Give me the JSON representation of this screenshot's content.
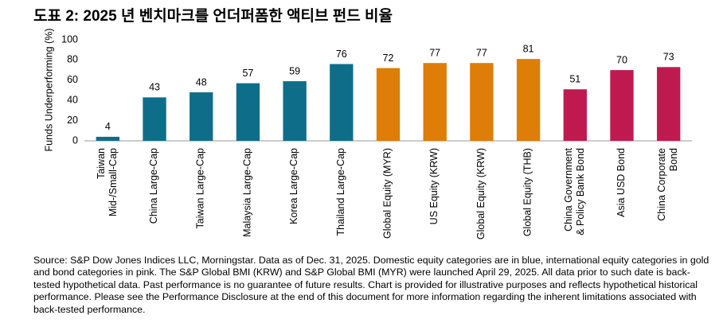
{
  "chart_data": {
    "type": "bar",
    "title": "도표 2: 2025 년 벤치마크를 언더퍼폼한 액티브 펀드 비율",
    "y_label": "Funds Underperforming (%)",
    "categories": [
      "Taiwan\nMid-/Small-Cap",
      "China Large-Cap",
      "Taiwan Large-Cap",
      "Malaysia Large-Cap",
      "Korea Large-Cap",
      "Thailand Large-Cap",
      "Global Equity (MYR)",
      "US Equity (KRW)",
      "Global Equity (KRW)",
      "Global Equity (THB)",
      "China Government\n& Policy Bank Bond",
      "Asia USD Bond",
      "China Corporate\nBond"
    ],
    "values": [
      4,
      43,
      48,
      57,
      59,
      76,
      72,
      77,
      77,
      81,
      51,
      70,
      73
    ],
    "colors": [
      "#0e6e89",
      "#0e6e89",
      "#0e6e89",
      "#0e6e89",
      "#0e6e89",
      "#0e6e89",
      "#de7d07",
      "#de7d07",
      "#de7d07",
      "#de7d07",
      "#bf1a50",
      "#bf1a50",
      "#bf1a50"
    ],
    "ylim": [
      0,
      100
    ],
    "yticks": [
      0,
      20,
      40,
      60,
      80,
      100
    ],
    "grid": false
  },
  "source": "Source: S&P Dow Jones Indices LLC, Morningstar.  Data as of Dec. 31, 2025.  Domestic equity categories are in blue, international equity categories in gold and bond categories in pink.  The S&P Global BMI (KRW) and S&P Global BMI (MYR) were launched April 29, 2025.  All data prior to such date is back-tested hypothetical data.  Past performance is no guarantee of future results.  Chart is provided for illustrative purposes and reflects hypothetical historical performance.  Please see the Performance Disclosure at the end of this document for more information regarding the inherent limitations associated with back-tested performance."
}
